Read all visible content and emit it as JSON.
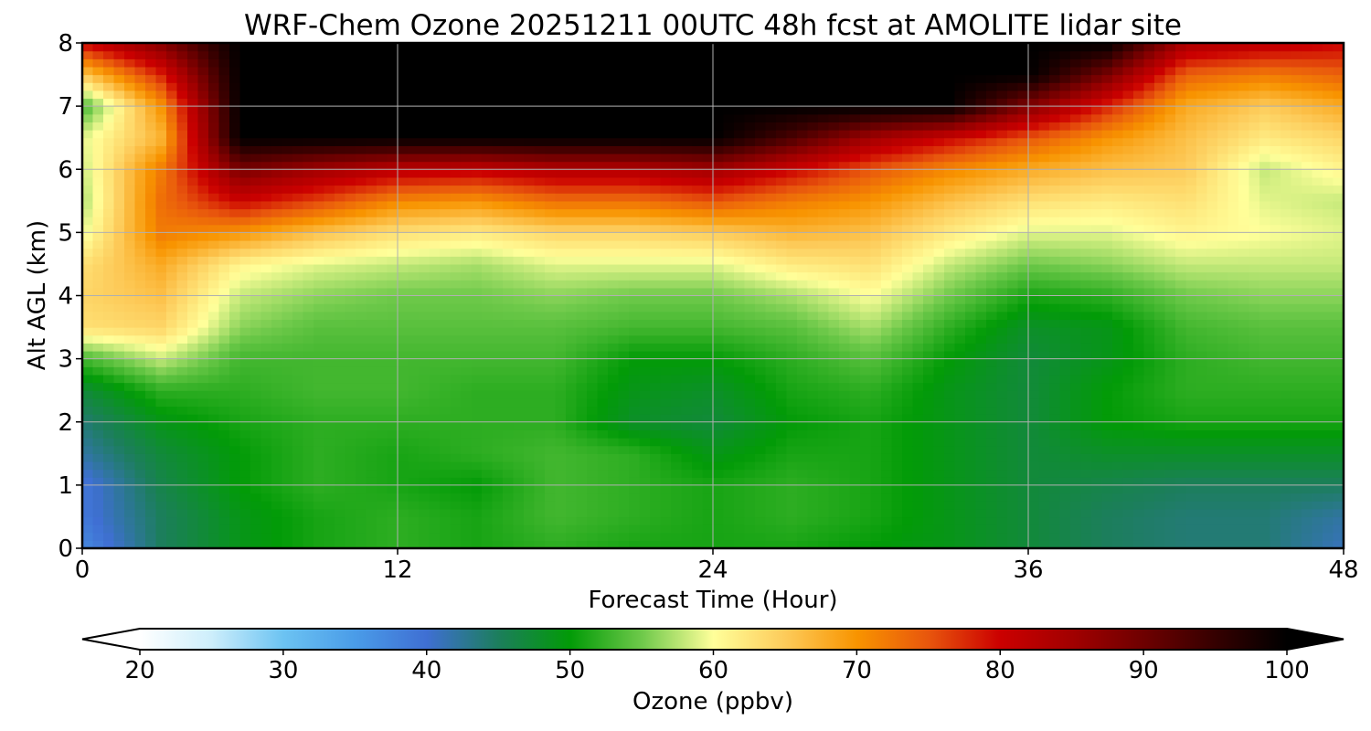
{
  "chart_data": {
    "type": "heatmap",
    "title": "WRF-Chem Ozone  20251211 00UTC 48h fcst at AMOLITE lidar site",
    "xlabel": "Forecast Time (Hour)",
    "ylabel": "Alt AGL (km)",
    "xlim": [
      0,
      48
    ],
    "ylim": [
      0,
      8
    ],
    "x_ticks": [
      0,
      12,
      24,
      36,
      48
    ],
    "y_ticks": [
      0,
      1,
      2,
      3,
      4,
      5,
      6,
      7,
      8
    ],
    "grid": true,
    "x": [
      0,
      3,
      6,
      9,
      12,
      15,
      18,
      21,
      24,
      27,
      30,
      33,
      36,
      39,
      42,
      45,
      48
    ],
    "y": [
      0,
      0.5,
      1,
      1.5,
      2,
      2.5,
      3,
      3.5,
      4,
      4.5,
      5,
      5.5,
      6,
      6.5,
      7,
      7.5,
      8
    ],
    "z": [
      [
        37,
        45,
        49,
        51,
        52,
        51,
        52,
        51,
        51,
        51,
        50,
        49,
        47,
        45,
        44,
        44,
        41
      ],
      [
        39,
        45,
        49,
        51,
        52,
        51,
        53,
        52,
        51,
        52,
        51,
        49,
        47,
        45,
        44,
        44,
        42
      ],
      [
        39,
        46,
        50,
        52,
        51,
        50,
        53,
        52,
        51,
        52,
        51,
        49,
        47,
        46,
        45,
        45,
        45
      ],
      [
        42,
        47,
        50,
        52,
        51,
        52,
        53,
        52,
        49,
        51,
        51,
        49,
        47,
        48,
        48,
        48,
        48
      ],
      [
        44,
        49,
        51,
        52,
        52,
        52,
        52,
        48,
        47,
        50,
        51,
        49,
        47,
        50,
        51,
        51,
        51
      ],
      [
        47,
        52,
        52,
        53,
        53,
        52,
        52,
        49,
        48,
        51,
        52,
        49,
        47,
        50,
        52,
        52,
        52
      ],
      [
        53,
        58,
        53,
        53,
        53,
        53,
        53,
        50,
        50,
        52,
        54,
        50,
        47,
        49,
        52,
        53,
        53
      ],
      [
        63,
        64,
        56,
        54,
        54,
        54,
        54,
        53,
        53,
        54,
        57,
        52,
        48,
        49,
        53,
        54,
        54
      ],
      [
        64,
        66,
        58,
        56,
        55,
        55,
        56,
        55,
        55,
        57,
        60,
        55,
        51,
        52,
        55,
        56,
        56
      ],
      [
        63,
        68,
        61,
        59,
        58,
        57,
        59,
        59,
        59,
        62,
        63,
        58,
        55,
        56,
        58,
        58,
        58
      ],
      [
        59,
        72,
        70,
        66,
        63,
        62,
        64,
        64,
        65,
        67,
        66,
        62,
        59,
        59,
        61,
        60,
        59
      ],
      [
        57,
        73,
        80,
        76,
        71,
        70,
        73,
        73,
        75,
        72,
        70,
        66,
        63,
        62,
        63,
        59,
        58
      ],
      [
        58,
        72,
        89,
        85,
        82,
        81,
        83,
        83,
        85,
        80,
        75,
        71,
        68,
        66,
        65,
        58,
        61
      ],
      [
        59,
        67,
        100,
        100,
        100,
        100,
        100,
        100,
        100,
        93,
        85,
        80,
        75,
        70,
        66,
        62,
        64
      ],
      [
        53,
        70,
        100,
        100,
        100,
        100,
        100,
        100,
        100,
        100,
        100,
        100,
        88,
        78,
        68,
        65,
        68
      ],
      [
        65,
        78,
        100,
        100,
        100,
        100,
        100,
        100,
        100,
        100,
        100,
        100,
        100,
        89,
        74,
        72,
        74
      ],
      [
        80,
        88,
        100,
        100,
        100,
        100,
        100,
        100,
        100,
        100,
        100,
        100,
        100,
        100,
        84,
        82,
        80
      ]
    ],
    "colorbar": {
      "label": "Ozone  (ppbv)",
      "min": 20,
      "max": 100,
      "ticks": [
        20,
        30,
        40,
        50,
        60,
        70,
        80,
        90,
        100
      ],
      "extend": "both",
      "colors": [
        [
          20,
          "#ffffff"
        ],
        [
          25,
          "#cdeefb"
        ],
        [
          30,
          "#6cc3f2"
        ],
        [
          35,
          "#4a9ce8"
        ],
        [
          40,
          "#3f6fd3"
        ],
        [
          45,
          "#1c7e5c"
        ],
        [
          50,
          "#029b07"
        ],
        [
          55,
          "#6ec94a"
        ],
        [
          60,
          "#ffff9a"
        ],
        [
          65,
          "#fdcb5a"
        ],
        [
          70,
          "#f89400"
        ],
        [
          75,
          "#e8560d"
        ],
        [
          80,
          "#cb0000"
        ],
        [
          85,
          "#a20000"
        ],
        [
          90,
          "#6e0000"
        ],
        [
          95,
          "#350000"
        ],
        [
          100,
          "#000000"
        ]
      ]
    }
  }
}
